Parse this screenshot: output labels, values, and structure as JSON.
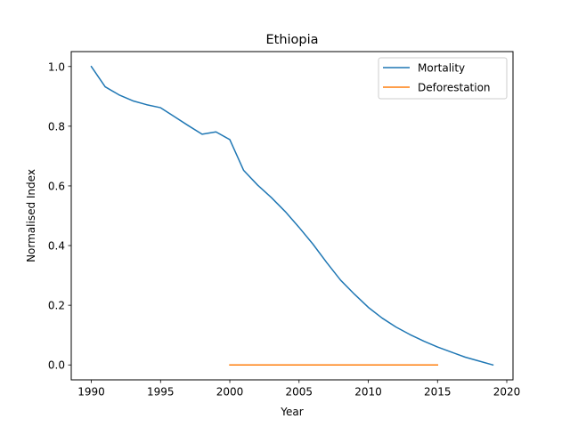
{
  "chart_data": {
    "type": "line",
    "title": "Ethiopia",
    "xlabel": "Year",
    "ylabel": "Normalised Index",
    "xlim": [
      1988.55,
      2020.45
    ],
    "ylim": [
      -0.05,
      1.05
    ],
    "xticks": [
      1990,
      1995,
      2000,
      2005,
      2010,
      2015,
      2020
    ],
    "yticks": [
      0.0,
      0.2,
      0.4,
      0.6,
      0.8,
      1.0
    ],
    "xtick_labels": [
      "1990",
      "1995",
      "2000",
      "2005",
      "2010",
      "2015",
      "2020"
    ],
    "ytick_labels": [
      "0.0",
      "0.2",
      "0.4",
      "0.6",
      "0.8",
      "1.0"
    ],
    "grid": false,
    "legend_position": "top-right",
    "series": [
      {
        "name": "Mortality",
        "color": "#1f77b4",
        "x": [
          1990,
          1991,
          1992,
          1993,
          1994,
          1995,
          1996,
          1997,
          1998,
          1999,
          2000,
          2001,
          2002,
          2003,
          2004,
          2005,
          2006,
          2007,
          2008,
          2009,
          2010,
          2011,
          2012,
          2013,
          2014,
          2015,
          2016,
          2017,
          2018,
          2019
        ],
        "y": [
          1.0,
          0.932,
          0.905,
          0.885,
          0.872,
          0.862,
          0.832,
          0.802,
          0.773,
          0.781,
          0.755,
          0.652,
          0.603,
          0.561,
          0.514,
          0.461,
          0.405,
          0.343,
          0.284,
          0.237,
          0.193,
          0.157,
          0.127,
          0.102,
          0.08,
          0.06,
          0.043,
          0.026,
          0.013,
          0.0
        ]
      },
      {
        "name": "Deforestation",
        "color": "#ff7f0e",
        "x": [
          2000,
          2001,
          2002,
          2003,
          2004,
          2005,
          2006,
          2007,
          2008,
          2009,
          2010,
          2011,
          2012,
          2013,
          2014,
          2015
        ],
        "y": [
          0,
          0,
          0,
          0,
          0,
          0,
          0,
          0,
          0,
          0,
          0,
          0,
          0,
          0,
          0,
          0
        ]
      }
    ]
  }
}
